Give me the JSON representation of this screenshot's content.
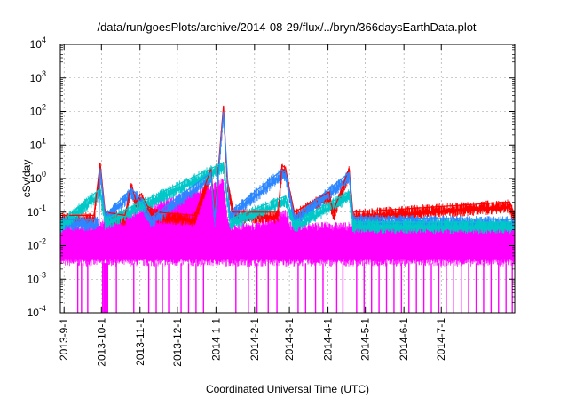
{
  "chart_data": {
    "type": "line",
    "title": "/data/run/goesPlots/archive/2014-08-29/flux/../bryn/366daysEarthData.plot",
    "xlabel": "Coordinated Universal Time (UTC)",
    "ylabel": "cSv/day",
    "y_scale": "log",
    "ylim": [
      0.0001,
      10000
    ],
    "xlim": [
      "2013-08-29",
      "2014-08-29"
    ],
    "x_ticks": [
      "2013-9-1",
      "2013-10-1",
      "2013-11-1",
      "2013-12-1",
      "2014-1-1",
      "2014-2-1",
      "2014-3-1",
      "2014-4-1",
      "2014-5-1",
      "2014-6-1",
      "2014-7-1"
    ],
    "x_tick_dates": [
      "2013-09-01",
      "2013-10-01",
      "2013-11-01",
      "2013-12-01",
      "2014-01-01",
      "2014-02-01",
      "2014-03-01",
      "2014-04-01",
      "2014-05-01",
      "2014-06-01",
      "2014-07-01"
    ],
    "y_ticks": [
      {
        "mant": "10",
        "exp": "-4"
      },
      {
        "mant": "10",
        "exp": "-3"
      },
      {
        "mant": "10",
        "exp": "-2"
      },
      {
        "mant": "10",
        "exp": "-1"
      },
      {
        "mant": "10",
        "exp": "0"
      },
      {
        "mant": "10",
        "exp": "1"
      },
      {
        "mant": "10",
        "exp": "2"
      },
      {
        "mant": "10",
        "exp": "3"
      },
      {
        "mant": "10",
        "exp": "4"
      }
    ],
    "grid": true,
    "series_colors": [
      "#ff0000",
      "#2c86ff",
      "#00c8c8",
      "#ff00ff"
    ],
    "series": [
      {
        "color": "#ff0000",
        "points": [
          [
            "2013-08-29",
            0.08
          ],
          [
            "2013-09-25",
            0.08
          ],
          [
            "2013-09-30",
            3.0
          ],
          [
            "2013-10-04",
            0.1
          ],
          [
            "2013-10-20",
            0.08
          ],
          [
            "2013-10-25",
            0.7
          ],
          [
            "2013-10-29",
            0.2
          ],
          [
            "2013-11-02",
            0.35
          ],
          [
            "2013-11-07",
            0.15
          ],
          [
            "2013-11-15",
            0.1
          ],
          [
            "2013-12-15",
            0.08
          ],
          [
            "2013-12-28",
            2.0
          ],
          [
            "2013-12-31",
            0.1
          ],
          [
            "2014-01-07",
            150
          ],
          [
            "2014-01-10",
            1.0
          ],
          [
            "2014-01-15",
            0.1
          ],
          [
            "2014-02-20",
            0.1
          ],
          [
            "2014-02-23",
            2.5
          ],
          [
            "2014-02-26",
            2.0
          ],
          [
            "2014-03-01",
            0.5
          ],
          [
            "2014-03-05",
            0.1
          ],
          [
            "2014-04-02",
            0.4
          ],
          [
            "2014-04-05",
            0.1
          ],
          [
            "2014-04-18",
            2.0
          ],
          [
            "2014-04-21",
            0.1
          ],
          [
            "2014-08-25",
            0.2
          ],
          [
            "2014-08-29",
            0.08
          ]
        ]
      },
      {
        "color": "#2c86ff",
        "points": [
          [
            "2013-08-29",
            0.06
          ],
          [
            "2013-09-29",
            0.06
          ],
          [
            "2013-09-30",
            2.0
          ],
          [
            "2013-10-04",
            0.08
          ],
          [
            "2013-10-25",
            0.5
          ],
          [
            "2013-11-02",
            0.25
          ],
          [
            "2013-11-10",
            0.07
          ],
          [
            "2013-12-28",
            1.5
          ],
          [
            "2013-12-31",
            0.07
          ],
          [
            "2014-01-07",
            100
          ],
          [
            "2014-01-12",
            0.1
          ],
          [
            "2014-02-23",
            1.8
          ],
          [
            "2014-02-26",
            1.5
          ],
          [
            "2014-03-05",
            0.07
          ],
          [
            "2014-04-18",
            1.5
          ],
          [
            "2014-04-21",
            0.07
          ],
          [
            "2014-08-29",
            0.06
          ]
        ]
      },
      {
        "color": "#00c8c8",
        "points": [
          [
            "2013-08-29",
            0.05
          ],
          [
            "2013-09-30",
            0.5
          ],
          [
            "2013-10-04",
            0.06
          ],
          [
            "2014-01-07",
            3.0
          ],
          [
            "2014-01-12",
            0.06
          ],
          [
            "2014-02-26",
            0.3
          ],
          [
            "2014-03-05",
            0.05
          ],
          [
            "2014-04-18",
            0.4
          ],
          [
            "2014-04-21",
            0.05
          ],
          [
            "2014-08-29",
            0.05
          ]
        ]
      },
      {
        "color": "#ff00ff",
        "band_low": 0.003,
        "band_high": 0.04,
        "dropout_min": 0.0001,
        "notes_dropout_dates": [
          "2013-09-12",
          "2013-09-15",
          "2013-09-20",
          "2013-10-02",
          "2013-10-03",
          "2013-10-04",
          "2013-10-05",
          "2013-10-06",
          "2013-10-13",
          "2013-10-27",
          "2013-11-08",
          "2013-11-14",
          "2013-11-19",
          "2013-11-24",
          "2013-12-04",
          "2013-12-10",
          "2013-12-16",
          "2013-12-22",
          "2014-01-17",
          "2014-01-27",
          "2014-02-03",
          "2014-02-12",
          "2014-02-19",
          "2014-03-08",
          "2014-03-14",
          "2014-03-22",
          "2014-03-28",
          "2014-04-08",
          "2014-04-13",
          "2014-04-24",
          "2014-04-30",
          "2014-05-06",
          "2014-05-12",
          "2014-05-18",
          "2014-05-24",
          "2014-05-30",
          "2014-06-05",
          "2014-06-11",
          "2014-06-17",
          "2014-06-23",
          "2014-06-29",
          "2014-07-05",
          "2014-07-11",
          "2014-07-17",
          "2014-07-23",
          "2014-07-29",
          "2014-08-04",
          "2014-08-10",
          "2014-08-16",
          "2014-08-22",
          "2014-08-27"
        ],
        "points": [
          [
            "2013-08-29",
            0.02
          ],
          [
            "2014-01-07",
            0.8
          ],
          [
            "2014-01-12",
            0.02
          ],
          [
            "2014-02-26",
            0.1
          ],
          [
            "2014-03-05",
            0.02
          ],
          [
            "2014-08-29",
            0.02
          ]
        ]
      }
    ]
  }
}
